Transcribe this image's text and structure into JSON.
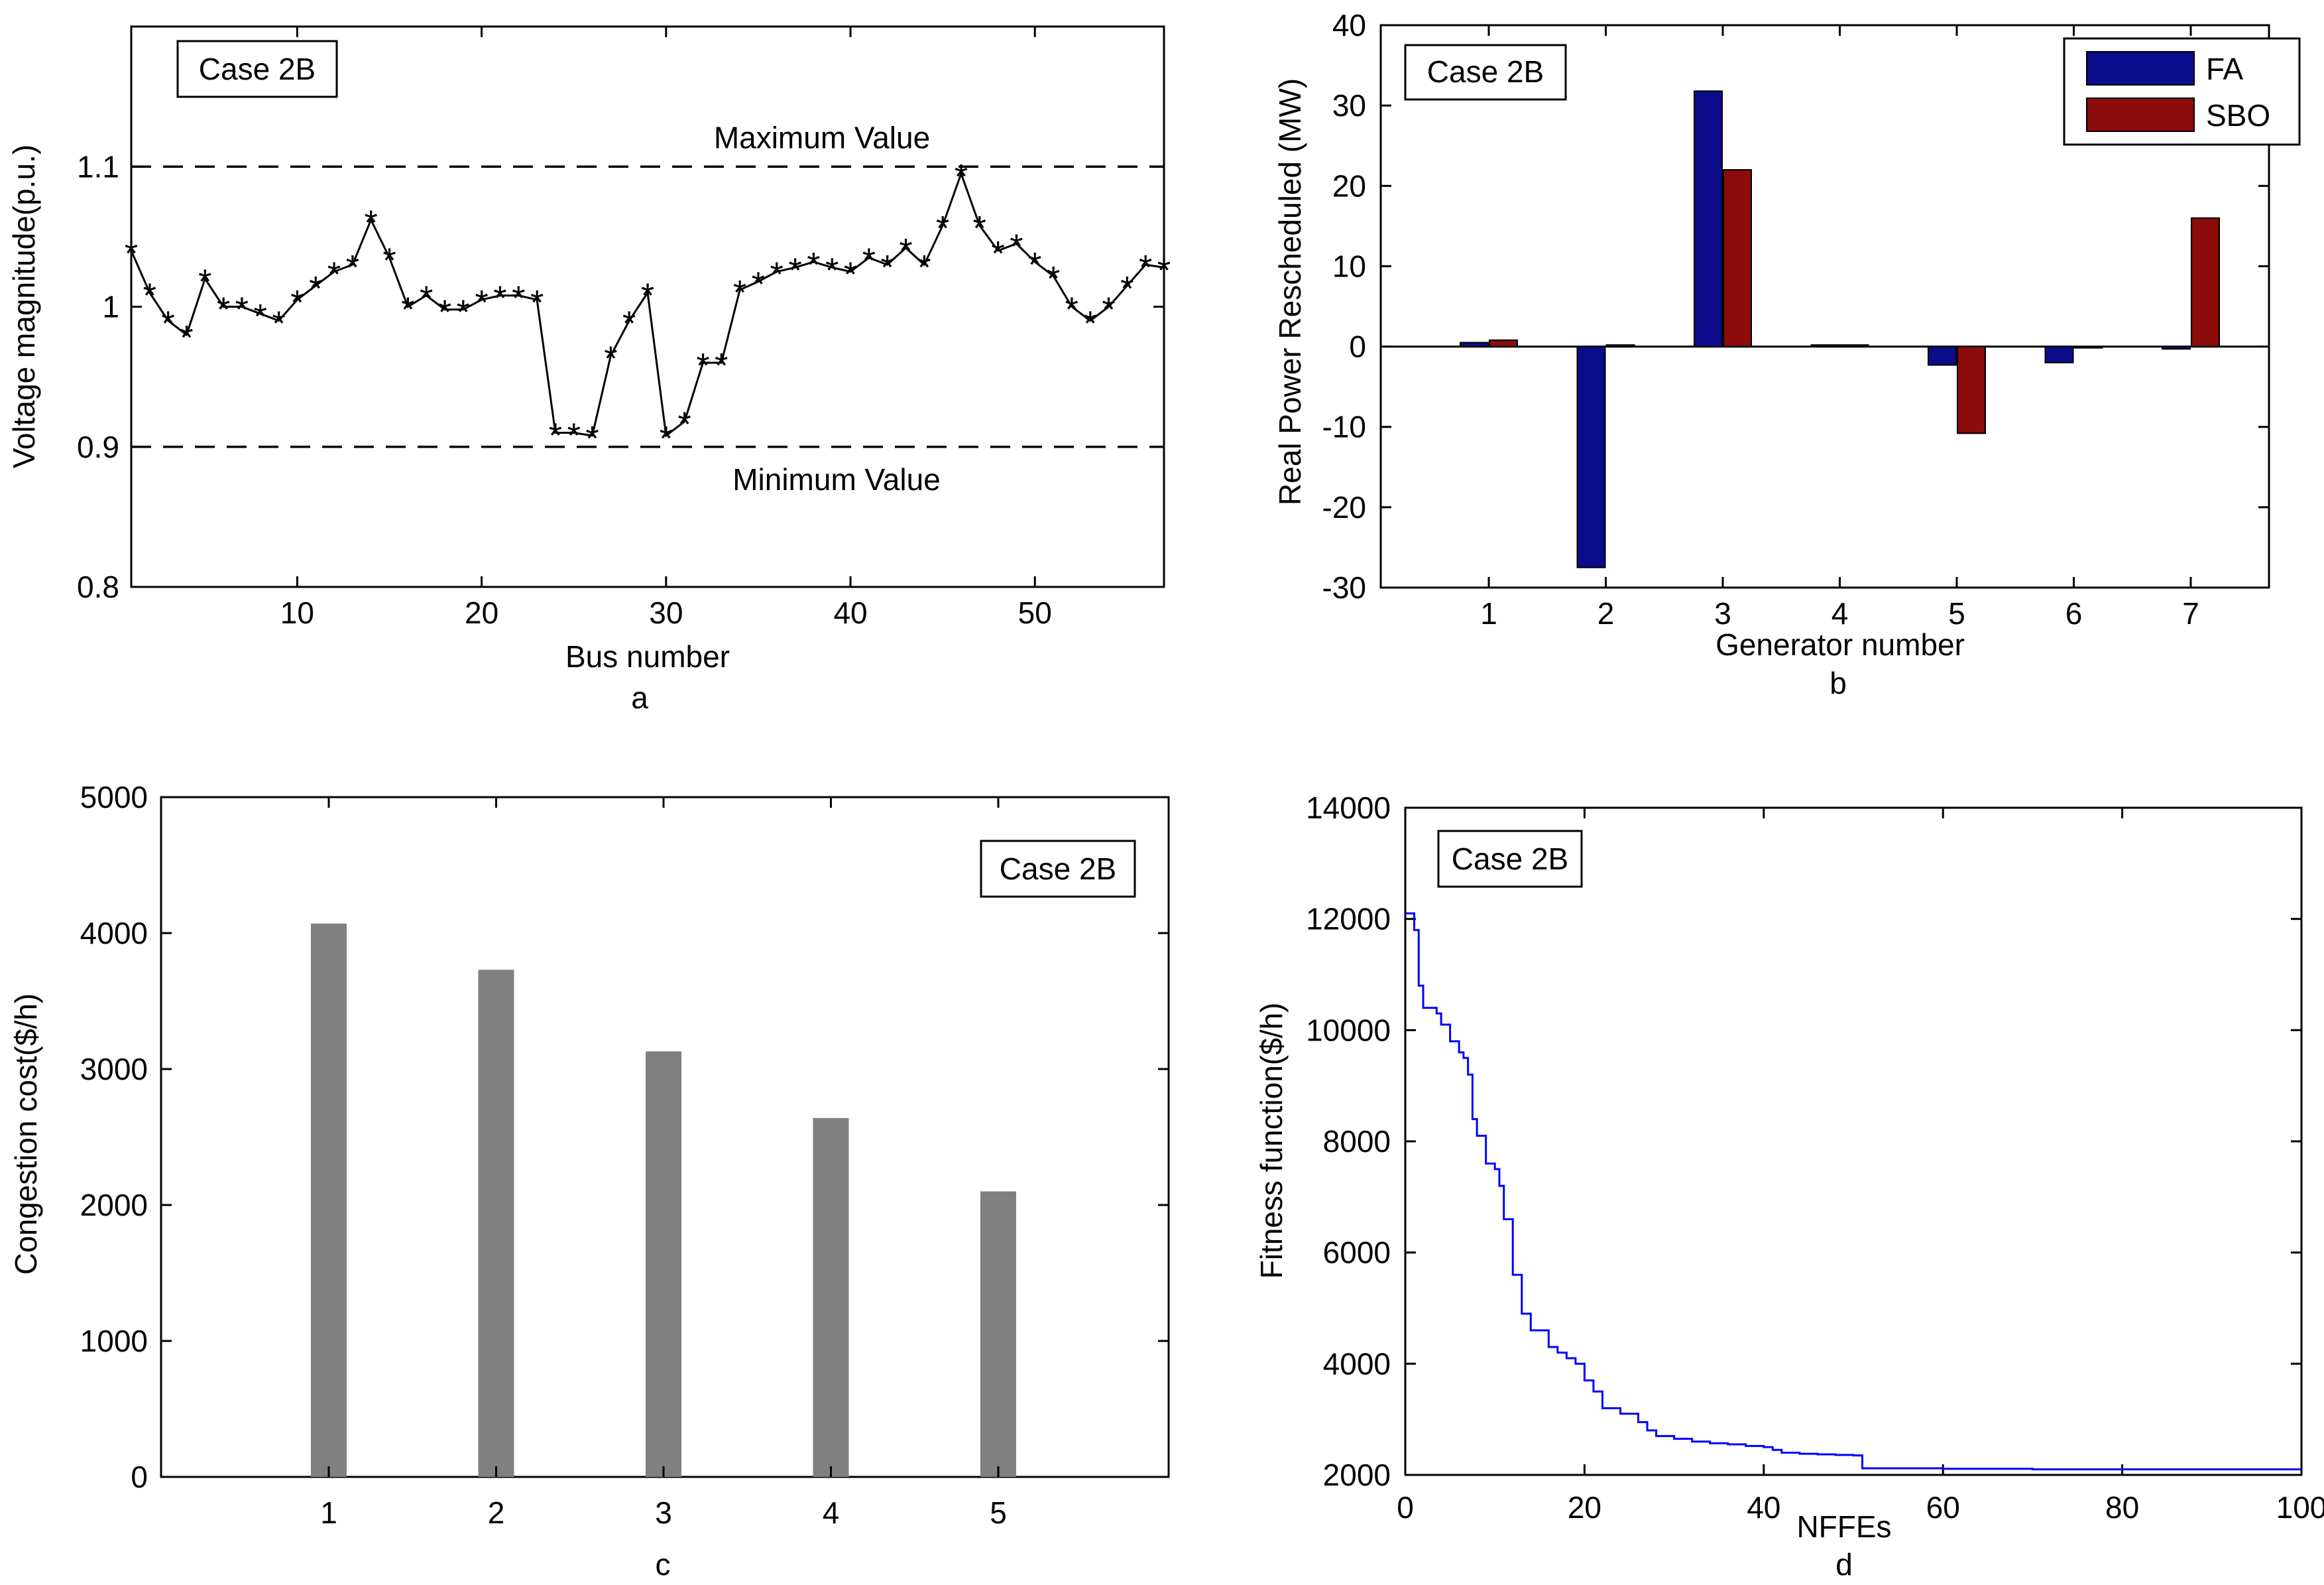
{
  "chart_data": [
    {
      "id": "a",
      "type": "line",
      "sublabel": "a",
      "case_label": "Case 2B",
      "xlabel": "Bus number",
      "ylabel": "Voltage magnitude(p.u.)",
      "xlim": [
        1,
        57
      ],
      "ylim": [
        0.8,
        1.2
      ],
      "xticks": [
        10,
        20,
        30,
        40,
        50
      ],
      "yticks": [
        0.8,
        0.9,
        1,
        1.1
      ],
      "ytick_labels": [
        "0.8",
        "0.9",
        "1",
        "1.1"
      ],
      "reference_lines": [
        {
          "label": "Maximum Value",
          "y": 1.1
        },
        {
          "label": "Minimum Value",
          "y": 0.9
        }
      ],
      "x": [
        1,
        2,
        3,
        4,
        5,
        6,
        7,
        8,
        9,
        10,
        11,
        12,
        13,
        14,
        15,
        16,
        17,
        18,
        19,
        20,
        21,
        22,
        23,
        24,
        25,
        26,
        27,
        28,
        29,
        30,
        31,
        32,
        33,
        34,
        35,
        36,
        37,
        38,
        39,
        40,
        41,
        42,
        43,
        44,
        45,
        46,
        47,
        48,
        49,
        50,
        51,
        52,
        53,
        54,
        55,
        56,
        57
      ],
      "values": [
        1.04,
        1.01,
        0.99,
        0.98,
        1.02,
        1.0,
        1.0,
        0.995,
        0.99,
        1.005,
        1.015,
        1.025,
        1.03,
        1.062,
        1.035,
        1.0,
        1.008,
        0.998,
        0.998,
        1.005,
        1.008,
        1.008,
        1.005,
        0.91,
        0.91,
        0.908,
        0.965,
        0.99,
        1.01,
        0.908,
        0.918,
        0.96,
        0.96,
        1.012,
        1.018,
        1.025,
        1.028,
        1.032,
        1.028,
        1.025,
        1.035,
        1.03,
        1.042,
        1.03,
        1.058,
        1.095,
        1.058,
        1.04,
        1.045,
        1.032,
        1.022,
        1.0,
        0.99,
        1.0,
        1.015,
        1.03,
        1.028
      ]
    },
    {
      "id": "b",
      "type": "bar",
      "sublabel": "b",
      "case_label": "Case 2B",
      "xlabel": "Generator number",
      "ylabel": "Real Power Rescheduled (MW)",
      "categories": [
        "1",
        "2",
        "3",
        "4",
        "5",
        "6",
        "7"
      ],
      "ylim": [
        -30,
        40
      ],
      "yticks": [
        -30,
        -20,
        -10,
        0,
        10,
        20,
        30,
        40
      ],
      "series": [
        {
          "name": "FA",
          "color": "#0b0c8c",
          "values": [
            0.5,
            -27.5,
            31.8,
            0.2,
            -2.3,
            -2.0,
            -0.3
          ]
        },
        {
          "name": "SBO",
          "color": "#8c0b0b",
          "values": [
            0.8,
            0.2,
            22.0,
            0.2,
            -10.8,
            0.0,
            16.0
          ]
        }
      ],
      "legend": "top-right"
    },
    {
      "id": "c",
      "type": "bar",
      "sublabel": "c",
      "case_label": "Case 2B",
      "xlabel": "",
      "ylabel": "Congestion cost($/h)",
      "categories": [
        "1",
        "2",
        "3",
        "4",
        "5"
      ],
      "values": [
        4070,
        3730,
        3130,
        2640,
        2100
      ],
      "color": "#808080",
      "ylim": [
        0,
        5000
      ],
      "yticks": [
        0,
        1000,
        2000,
        3000,
        4000,
        5000
      ]
    },
    {
      "id": "d",
      "type": "line",
      "sublabel": "d",
      "case_label": "Case 2B",
      "xlabel": "NFFEs",
      "ylabel": "Fitness function($/h)",
      "xlim": [
        0,
        100
      ],
      "ylim": [
        2000,
        14000
      ],
      "xticks": [
        0,
        20,
        40,
        60,
        80,
        100
      ],
      "xtick_labels": [
        "0",
        "20",
        "40",
        "60",
        "80",
        "100"
      ],
      "yticks": [
        2000,
        4000,
        6000,
        8000,
        10000,
        12000,
        14000
      ],
      "color": "#0000ff",
      "x": [
        0,
        0.5,
        1,
        1.5,
        2,
        3,
        3.5,
        4,
        5,
        6,
        6.5,
        7,
        7.5,
        8,
        9,
        10,
        10.5,
        11,
        12,
        13,
        14,
        16,
        17,
        18,
        19,
        20,
        21,
        22,
        24,
        26,
        27,
        28,
        30,
        32,
        34,
        36,
        38,
        40,
        41,
        42,
        44,
        46,
        48,
        50,
        51,
        55,
        60,
        70,
        80,
        90,
        100
      ],
      "values": [
        12100,
        12100,
        11800,
        10800,
        10400,
        10400,
        10300,
        10100,
        9800,
        9600,
        9500,
        9200,
        8400,
        8100,
        7600,
        7500,
        7200,
        6600,
        5600,
        4900,
        4600,
        4300,
        4200,
        4100,
        4000,
        3700,
        3500,
        3200,
        3100,
        2950,
        2800,
        2700,
        2650,
        2600,
        2570,
        2550,
        2520,
        2500,
        2450,
        2400,
        2380,
        2370,
        2360,
        2350,
        2120,
        2120,
        2110,
        2100,
        2100,
        2100,
        2100
      ]
    }
  ]
}
